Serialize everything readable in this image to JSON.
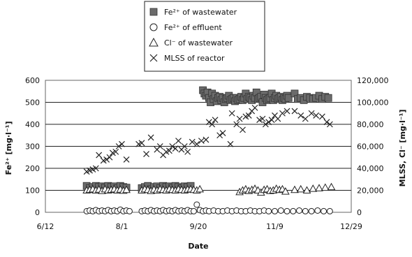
{
  "chart_data": {
    "type": "scatter",
    "xlabel": "Date",
    "ylabel_left": "Fe²⁺ [mg·l⁻¹]",
    "ylabel_right": "MLSS, Cl⁻ [mg·l⁻¹]",
    "x_ticks": [
      "6/12",
      "8/1",
      "9/20",
      "11/9",
      "12/29"
    ],
    "x_tick_days": [
      0,
      50,
      100,
      150,
      200
    ],
    "y_left_ticks": [
      "0",
      "100",
      "200",
      "300",
      "400",
      "500",
      "600"
    ],
    "y_right_ticks": [
      "0",
      "20,000",
      "40,000",
      "60,000",
      "80,000",
      "100,000",
      "120,000"
    ],
    "ylim_left": [
      0,
      600
    ],
    "ylim_right": [
      0,
      120000
    ],
    "xlim_days": [
      0,
      200
    ],
    "grid": "horizontal",
    "legend_position": "top",
    "series": [
      {
        "name": "Fe²⁺ of wastewater",
        "marker": "filled-square",
        "axis": "left",
        "color": "#555555",
        "points": [
          [
            27,
            120
          ],
          [
            29,
            110
          ],
          [
            31,
            115
          ],
          [
            33,
            120
          ],
          [
            35,
            115
          ],
          [
            37,
            118
          ],
          [
            39,
            112
          ],
          [
            41,
            120
          ],
          [
            43,
            115
          ],
          [
            45,
            118
          ],
          [
            47,
            110
          ],
          [
            49,
            120
          ],
          [
            51,
            115
          ],
          [
            53,
            112
          ],
          [
            63,
            110
          ],
          [
            65,
            115
          ],
          [
            67,
            120
          ],
          [
            69,
            105
          ],
          [
            71,
            115
          ],
          [
            73,
            118
          ],
          [
            75,
            110
          ],
          [
            77,
            120
          ],
          [
            79,
            115
          ],
          [
            81,
            118
          ],
          [
            83,
            112
          ],
          [
            85,
            120
          ],
          [
            87,
            115
          ],
          [
            89,
            110
          ],
          [
            91,
            118
          ],
          [
            93,
            115
          ],
          [
            95,
            120
          ],
          [
            103,
            555
          ],
          [
            104,
            540
          ],
          [
            105,
            530
          ],
          [
            106,
            545
          ],
          [
            107,
            520
          ],
          [
            108,
            500
          ],
          [
            109,
            540
          ],
          [
            110,
            515
          ],
          [
            111,
            530
          ],
          [
            112,
            505
          ],
          [
            113,
            520
          ],
          [
            114,
            525
          ],
          [
            115,
            510
          ],
          [
            116,
            520
          ],
          [
            117,
            500
          ],
          [
            118,
            515
          ],
          [
            119,
            520
          ],
          [
            120,
            530
          ],
          [
            121,
            510
          ],
          [
            122,
            515
          ],
          [
            123,
            520
          ],
          [
            124,
            505
          ],
          [
            125,
            520
          ],
          [
            126,
            510
          ],
          [
            127,
            515
          ],
          [
            128,
            525
          ],
          [
            129,
            510
          ],
          [
            130,
            520
          ],
          [
            131,
            540
          ],
          [
            132,
            515
          ],
          [
            133,
            525
          ],
          [
            134,
            520
          ],
          [
            135,
            510
          ],
          [
            136,
            530
          ],
          [
            137,
            520
          ],
          [
            138,
            545
          ],
          [
            139,
            515
          ],
          [
            140,
            520
          ],
          [
            141,
            525
          ],
          [
            142,
            500
          ],
          [
            143,
            535
          ],
          [
            144,
            520
          ],
          [
            145,
            510
          ],
          [
            146,
            515
          ],
          [
            147,
            520
          ],
          [
            148,
            540
          ],
          [
            149,
            510
          ],
          [
            150,
            520
          ],
          [
            151,
            530
          ],
          [
            152,
            515
          ],
          [
            153,
            520
          ],
          [
            154,
            525
          ],
          [
            155,
            510
          ],
          [
            156,
            520
          ],
          [
            157,
            515
          ],
          [
            158,
            530
          ],
          [
            159,
            520
          ],
          [
            163,
            540
          ],
          [
            165,
            515
          ],
          [
            167,
            520
          ],
          [
            169,
            510
          ],
          [
            171,
            525
          ],
          [
            173,
            520
          ],
          [
            175,
            515
          ],
          [
            177,
            520
          ],
          [
            179,
            530
          ],
          [
            181,
            515
          ],
          [
            183,
            525
          ],
          [
            185,
            520
          ]
        ]
      },
      {
        "name": "Fe²⁺ of effluent",
        "marker": "open-circle",
        "axis": "left",
        "color": "#222222",
        "points": [
          [
            27,
            5
          ],
          [
            29,
            8
          ],
          [
            31,
            5
          ],
          [
            33,
            10
          ],
          [
            35,
            5
          ],
          [
            37,
            8
          ],
          [
            39,
            5
          ],
          [
            41,
            10
          ],
          [
            43,
            5
          ],
          [
            45,
            8
          ],
          [
            47,
            5
          ],
          [
            49,
            12
          ],
          [
            51,
            5
          ],
          [
            53,
            8
          ],
          [
            55,
            5
          ],
          [
            63,
            5
          ],
          [
            65,
            8
          ],
          [
            67,
            5
          ],
          [
            69,
            10
          ],
          [
            71,
            5
          ],
          [
            73,
            8
          ],
          [
            75,
            5
          ],
          [
            77,
            10
          ],
          [
            79,
            5
          ],
          [
            81,
            8
          ],
          [
            83,
            5
          ],
          [
            85,
            10
          ],
          [
            87,
            5
          ],
          [
            89,
            8
          ],
          [
            91,
            5
          ],
          [
            93,
            10
          ],
          [
            95,
            5
          ],
          [
            97,
            5
          ],
          [
            99,
            35
          ],
          [
            101,
            10
          ],
          [
            103,
            5
          ],
          [
            105,
            8
          ],
          [
            107,
            5
          ],
          [
            110,
            8
          ],
          [
            113,
            5
          ],
          [
            116,
            5
          ],
          [
            119,
            8
          ],
          [
            122,
            5
          ],
          [
            125,
            8
          ],
          [
            128,
            5
          ],
          [
            131,
            5
          ],
          [
            134,
            8
          ],
          [
            137,
            5
          ],
          [
            140,
            5
          ],
          [
            143,
            8
          ],
          [
            146,
            5
          ],
          [
            150,
            5
          ],
          [
            154,
            8
          ],
          [
            158,
            5
          ],
          [
            162,
            5
          ],
          [
            166,
            8
          ],
          [
            170,
            5
          ],
          [
            174,
            5
          ],
          [
            178,
            8
          ],
          [
            182,
            5
          ],
          [
            186,
            5
          ]
        ]
      },
      {
        "name": "Cl⁻ of wastewater",
        "marker": "open-triangle",
        "axis": "right",
        "color": "#222222",
        "points": [
          [
            27,
            20000
          ],
          [
            29,
            20500
          ],
          [
            31,
            21000
          ],
          [
            33,
            20000
          ],
          [
            35,
            20800
          ],
          [
            37,
            19500
          ],
          [
            39,
            21000
          ],
          [
            41,
            20000
          ],
          [
            43,
            20500
          ],
          [
            45,
            21000
          ],
          [
            47,
            20000
          ],
          [
            49,
            20800
          ],
          [
            51,
            19800
          ],
          [
            53,
            20500
          ],
          [
            63,
            20000
          ],
          [
            65,
            21000
          ],
          [
            67,
            20500
          ],
          [
            69,
            19500
          ],
          [
            71,
            20800
          ],
          [
            73,
            20000
          ],
          [
            75,
            21000
          ],
          [
            77,
            20500
          ],
          [
            79,
            20000
          ],
          [
            81,
            21000
          ],
          [
            83,
            20500
          ],
          [
            85,
            20000
          ],
          [
            87,
            21000
          ],
          [
            89,
            20500
          ],
          [
            91,
            20000
          ],
          [
            93,
            20800
          ],
          [
            95,
            21000
          ],
          [
            97,
            20500
          ],
          [
            99,
            20000
          ],
          [
            101,
            21000
          ],
          [
            127,
            18500
          ],
          [
            129,
            20000
          ],
          [
            131,
            21000
          ],
          [
            133,
            19500
          ],
          [
            135,
            20500
          ],
          [
            137,
            21500
          ],
          [
            139,
            20000
          ],
          [
            141,
            18000
          ],
          [
            143,
            20500
          ],
          [
            145,
            21000
          ],
          [
            147,
            19500
          ],
          [
            149,
            20000
          ],
          [
            151,
            21500
          ],
          [
            153,
            20500
          ],
          [
            155,
            21000
          ],
          [
            157,
            19000
          ],
          [
            163,
            20500
          ],
          [
            167,
            21000
          ],
          [
            171,
            20000
          ],
          [
            175,
            21500
          ],
          [
            179,
            22000
          ],
          [
            183,
            22500
          ],
          [
            187,
            23000
          ]
        ]
      },
      {
        "name": "MLSS of reactor",
        "marker": "x",
        "axis": "right",
        "color": "#222222",
        "points": [
          [
            27,
            37000
          ],
          [
            29,
            38000
          ],
          [
            31,
            39000
          ],
          [
            33,
            40000
          ],
          [
            35,
            52000
          ],
          [
            38,
            47000
          ],
          [
            40,
            48000
          ],
          [
            42,
            50000
          ],
          [
            44,
            54000
          ],
          [
            46,
            55000
          ],
          [
            48,
            60000
          ],
          [
            50,
            62000
          ],
          [
            53,
            48000
          ],
          [
            61,
            62000
          ],
          [
            63,
            63000
          ],
          [
            66,
            53000
          ],
          [
            69,
            68000
          ],
          [
            73,
            57000
          ],
          [
            75,
            60000
          ],
          [
            77,
            52000
          ],
          [
            79,
            55000
          ],
          [
            81,
            56000
          ],
          [
            83,
            60000
          ],
          [
            85,
            58000
          ],
          [
            87,
            65000
          ],
          [
            89,
            57000
          ],
          [
            91,
            60000
          ],
          [
            93,
            55000
          ],
          [
            96,
            64000
          ],
          [
            99,
            62000
          ],
          [
            102,
            65000
          ],
          [
            105,
            66000
          ],
          [
            107,
            82000
          ],
          [
            109,
            80000
          ],
          [
            111,
            84000
          ],
          [
            114,
            70000
          ],
          [
            116,
            72000
          ],
          [
            121,
            62000
          ],
          [
            122,
            90000
          ],
          [
            125,
            80000
          ],
          [
            127,
            85000
          ],
          [
            129,
            75000
          ],
          [
            131,
            87000
          ],
          [
            133,
            88000
          ],
          [
            135,
            92000
          ],
          [
            137,
            95000
          ],
          [
            140,
            84000
          ],
          [
            142,
            85000
          ],
          [
            144,
            80000
          ],
          [
            146,
            82000
          ],
          [
            148,
            84000
          ],
          [
            150,
            88000
          ],
          [
            152,
            85000
          ],
          [
            155,
            90000
          ],
          [
            158,
            92000
          ],
          [
            163,
            92000
          ],
          [
            167,
            88000
          ],
          [
            170,
            85000
          ],
          [
            174,
            90000
          ],
          [
            177,
            88000
          ],
          [
            181,
            87000
          ],
          [
            184,
            82000
          ],
          [
            186,
            80000
          ]
        ]
      }
    ]
  }
}
